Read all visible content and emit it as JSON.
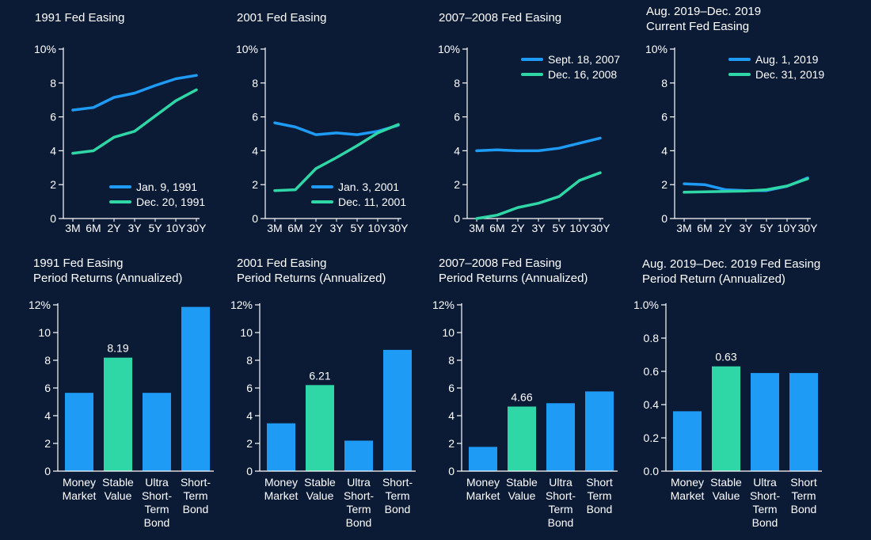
{
  "colors": {
    "background": "#0b1a35",
    "series_blue": "#1e9bf5",
    "series_green": "#2fd6a6",
    "axis": "#ffffff"
  },
  "chart_data": [
    {
      "id": "line1",
      "type": "line",
      "title_lines": [
        "1991 Fed Easing"
      ],
      "categories": [
        "3M",
        "6M",
        "2Y",
        "3Y",
        "5Y",
        "10Y",
        "30Y"
      ],
      "ylim": [
        0,
        10
      ],
      "yticks": [
        "0",
        "2",
        "4",
        "6",
        "8",
        "10%"
      ],
      "legend_position": "bottom-right",
      "series": [
        {
          "name": "Jan. 9, 1991",
          "values": [
            6.4,
            6.55,
            7.15,
            7.4,
            7.85,
            8.25,
            8.45
          ]
        },
        {
          "name": "Dec. 20, 1991",
          "values": [
            3.85,
            4.0,
            4.8,
            5.15,
            6.05,
            6.95,
            7.6
          ]
        }
      ]
    },
    {
      "id": "line2",
      "type": "line",
      "title_lines": [
        "2001 Fed Easing"
      ],
      "categories": [
        "3M",
        "6M",
        "2Y",
        "3Y",
        "5Y",
        "10Y",
        "30Y"
      ],
      "ylim": [
        0,
        10
      ],
      "yticks": [
        "0",
        "2",
        "4",
        "6",
        "8",
        "10%"
      ],
      "legend_position": "bottom-right",
      "series": [
        {
          "name": "Jan. 3, 2001",
          "values": [
            5.65,
            5.4,
            4.95,
            5.05,
            4.95,
            5.15,
            5.5
          ]
        },
        {
          "name": "Dec. 11, 2001",
          "values": [
            1.65,
            1.7,
            2.95,
            3.6,
            4.3,
            5.05,
            5.55
          ]
        }
      ]
    },
    {
      "id": "line3",
      "type": "line",
      "title_lines": [
        "2007–2008 Fed Easing"
      ],
      "categories": [
        "3M",
        "6M",
        "2Y",
        "3Y",
        "5Y",
        "10Y",
        "30Y"
      ],
      "ylim": [
        0,
        10
      ],
      "yticks": [
        "0",
        "2",
        "4",
        "6",
        "8",
        "10%"
      ],
      "legend_position": "top-right",
      "series": [
        {
          "name": "Sept. 18, 2007",
          "values": [
            4.0,
            4.05,
            4.0,
            4.0,
            4.15,
            4.45,
            4.75
          ]
        },
        {
          "name": "Dec. 16, 2008",
          "values": [
            0.0,
            0.2,
            0.65,
            0.9,
            1.3,
            2.25,
            2.7
          ]
        }
      ]
    },
    {
      "id": "line4",
      "type": "line",
      "title_lines": [
        "Aug. 2019–Dec. 2019",
        "Current Fed Easing"
      ],
      "categories": [
        "3M",
        "6M",
        "2Y",
        "3Y",
        "5Y",
        "10Y",
        "30Y"
      ],
      "ylim": [
        0,
        10
      ],
      "yticks": [
        "0",
        "2",
        "4",
        "6",
        "8",
        "10%"
      ],
      "legend_position": "top-right",
      "series": [
        {
          "name": "Aug. 1, 2019",
          "values": [
            2.05,
            2.0,
            1.7,
            1.65,
            1.65,
            1.9,
            2.4
          ]
        },
        {
          "name": "Dec. 31, 2019",
          "values": [
            1.55,
            1.58,
            1.6,
            1.62,
            1.7,
            1.92,
            2.35
          ]
        }
      ]
    },
    {
      "id": "bar1",
      "type": "bar",
      "title_lines": [
        "1991 Fed Easing",
        "Period Returns (Annualized)"
      ],
      "categories": [
        [
          "Money",
          "Market"
        ],
        [
          "Stable",
          "Value"
        ],
        [
          "Ultra",
          "Short-",
          "Term",
          "Bond"
        ],
        [
          "Short-",
          "Term",
          "Bond"
        ]
      ],
      "values": [
        5.65,
        8.19,
        5.65,
        11.85
      ],
      "highlight_index": 1,
      "data_labels": [
        "",
        "8.19",
        "",
        ""
      ],
      "ylim": [
        0,
        12
      ],
      "yticks": [
        "0",
        "2",
        "4",
        "6",
        "8",
        "10",
        "12%"
      ]
    },
    {
      "id": "bar2",
      "type": "bar",
      "title_lines": [
        "2001 Fed Easing",
        "Period Returns (Annualized)"
      ],
      "categories": [
        [
          "Money",
          "Market"
        ],
        [
          "Stable",
          "Value"
        ],
        [
          "Ultra",
          "Short-",
          "Term",
          "Bond"
        ],
        [
          "Short-",
          "Term",
          "Bond"
        ]
      ],
      "values": [
        3.45,
        6.21,
        2.2,
        8.75
      ],
      "highlight_index": 1,
      "data_labels": [
        "",
        "6.21",
        "",
        ""
      ],
      "ylim": [
        0,
        12
      ],
      "yticks": [
        "0",
        "2",
        "4",
        "6",
        "8",
        "10",
        "12%"
      ]
    },
    {
      "id": "bar3",
      "type": "bar",
      "title_lines": [
        "2007–2008 Fed Easing",
        "Period Returns (Annualized)"
      ],
      "categories": [
        [
          "Money",
          "Market"
        ],
        [
          "Stable",
          "Value"
        ],
        [
          "Ultra",
          "Short-",
          "Term",
          "Bond"
        ],
        [
          "Short",
          "Term",
          "Bond"
        ]
      ],
      "values": [
        1.75,
        4.66,
        4.9,
        5.75
      ],
      "highlight_index": 1,
      "data_labels": [
        "",
        "4.66",
        "",
        ""
      ],
      "ylim": [
        0,
        12
      ],
      "yticks": [
        "0",
        "2",
        "4",
        "6",
        "8",
        "10",
        "12%"
      ]
    },
    {
      "id": "bar4",
      "type": "bar",
      "title_lines": [
        "Aug. 2019–Dec. 2019 Fed Easing",
        "Period Return (Annualized)"
      ],
      "categories": [
        [
          "Money",
          "Market"
        ],
        [
          "Stable",
          "Value"
        ],
        [
          "Ultra",
          "Short-",
          "Term",
          "Bond"
        ],
        [
          "Short",
          "Term",
          "Bond"
        ]
      ],
      "values": [
        0.36,
        0.63,
        0.59,
        0.59
      ],
      "highlight_index": 1,
      "data_labels": [
        "",
        "0.63",
        "",
        ""
      ],
      "ylim": [
        0,
        1.0
      ],
      "yticks": [
        "0.0",
        "0.2",
        "0.4",
        "0.6",
        "0.8",
        "1.0%"
      ]
    }
  ]
}
